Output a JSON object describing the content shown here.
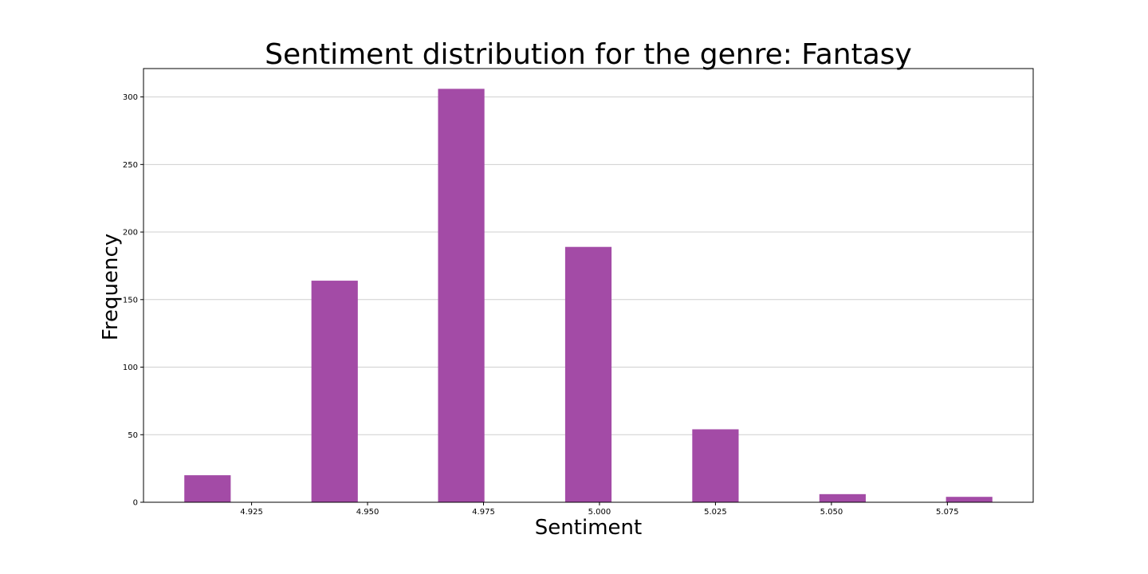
{
  "chart_data": {
    "type": "bar",
    "title": "Sentiment distribution for the genre: Fantasy",
    "xlabel": "Sentiment",
    "ylabel": "Frequency",
    "bars": [
      {
        "x_start": 4.9105,
        "x_end": 4.9205,
        "value": 20
      },
      {
        "x_start": 4.9379,
        "x_end": 4.9479,
        "value": 164
      },
      {
        "x_start": 4.9652,
        "x_end": 4.9752,
        "value": 306
      },
      {
        "x_start": 4.9926,
        "x_end": 5.0026,
        "value": 189
      },
      {
        "x_start": 5.02,
        "x_end": 5.03,
        "value": 54
      },
      {
        "x_start": 5.0474,
        "x_end": 5.0574,
        "value": 6
      },
      {
        "x_start": 5.0747,
        "x_end": 5.0847,
        "value": 4
      }
    ],
    "xticks": [
      4.925,
      4.95,
      4.975,
      5.0,
      5.025,
      5.05,
      5.075
    ],
    "xtick_labels": [
      "4.925",
      "4.950",
      "4.975",
      "5.000",
      "5.025",
      "5.050",
      "5.075"
    ],
    "yticks": [
      0,
      50,
      100,
      150,
      200,
      250,
      300
    ],
    "xlim": [
      4.9017,
      5.0935
    ],
    "ylim": [
      0,
      321
    ],
    "grid": "horizontal",
    "bar_color": "#a34ba6"
  }
}
